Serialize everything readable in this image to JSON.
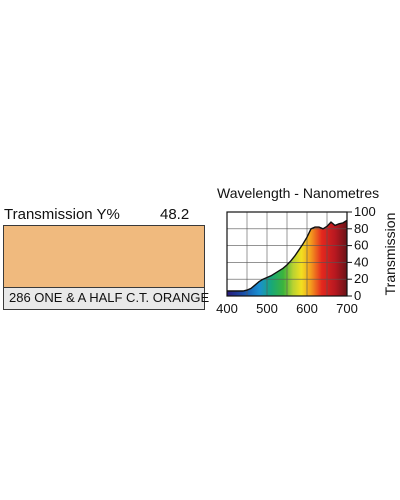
{
  "transmission": {
    "label": "Transmission Y%",
    "value": "48.2"
  },
  "filter": {
    "name": "286 ONE & A HALF C.T. ORANGE",
    "swatch_color": "#f0ba7e"
  },
  "chart_data": {
    "type": "area",
    "title": "Wavelength - Nanometres",
    "xlabel": "",
    "ylabel": "Transmission",
    "xlim": [
      400,
      700
    ],
    "ylim": [
      0,
      100
    ],
    "x_ticks": [
      400,
      500,
      600,
      700
    ],
    "y_ticks": [
      0,
      20,
      40,
      60,
      80,
      100
    ],
    "grid": true,
    "series": [
      {
        "x": [
          400,
          410,
          420,
          430,
          440,
          450,
          460,
          470,
          480,
          490,
          500,
          510,
          520,
          530,
          540,
          550,
          560,
          570,
          580,
          590,
          600,
          610,
          620,
          630,
          640,
          650,
          660,
          670,
          680,
          690,
          700
        ],
        "values": [
          6,
          6,
          6,
          6,
          6,
          7,
          9,
          13,
          17,
          20,
          22,
          24,
          27,
          30,
          33,
          37,
          42,
          48,
          55,
          62,
          70,
          80,
          82,
          82,
          80,
          83,
          88,
          84,
          86,
          87,
          90
        ]
      }
    ]
  }
}
